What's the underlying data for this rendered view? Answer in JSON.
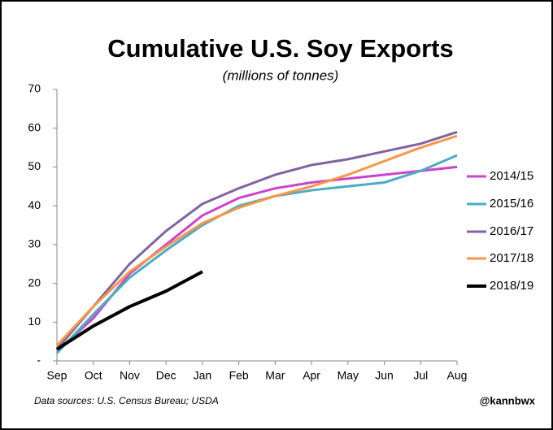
{
  "chart_data": {
    "type": "line",
    "title": "Cumulative U.S. Soy Exports",
    "subtitle": "(millions of tonnes)",
    "source": "Data sources: U.S. Census Bureau; USDA",
    "credit": "@kannbwx",
    "categories": [
      "Sep",
      "Oct",
      "Nov",
      "Dec",
      "Jan",
      "Feb",
      "Mar",
      "Apr",
      "May",
      "Jun",
      "Jul",
      "Aug"
    ],
    "ylim": [
      0,
      70
    ],
    "yticks": [
      {
        "value": 0,
        "label": "-"
      },
      10,
      20,
      30,
      40,
      50,
      60,
      70
    ],
    "grid": false,
    "legend": "right",
    "series": [
      {
        "name": "2014/15",
        "color": "#cc44cc",
        "values": [
          2.5,
          11,
          22.5,
          30,
          37.5,
          42,
          44.5,
          46,
          47,
          48,
          49,
          50
        ]
      },
      {
        "name": "2015/16",
        "color": "#4bacc6",
        "values": [
          2,
          12,
          21.5,
          28.5,
          35,
          40,
          42.5,
          44,
          45,
          46,
          49,
          53
        ]
      },
      {
        "name": "2016/17",
        "color": "#8064a2",
        "values": [
          3,
          14,
          25,
          33.5,
          40.5,
          44.5,
          48,
          50.5,
          52,
          54,
          56,
          59
        ]
      },
      {
        "name": "2017/18",
        "color": "#f79646",
        "values": [
          4,
          14,
          23,
          29.5,
          35.5,
          39.5,
          42.5,
          45,
          48,
          51.5,
          55,
          58
        ]
      },
      {
        "name": "2018/19",
        "color": "#000000",
        "values": [
          3,
          9,
          14,
          18,
          23,
          null,
          null,
          null,
          null,
          null,
          null,
          null
        ]
      }
    ]
  }
}
